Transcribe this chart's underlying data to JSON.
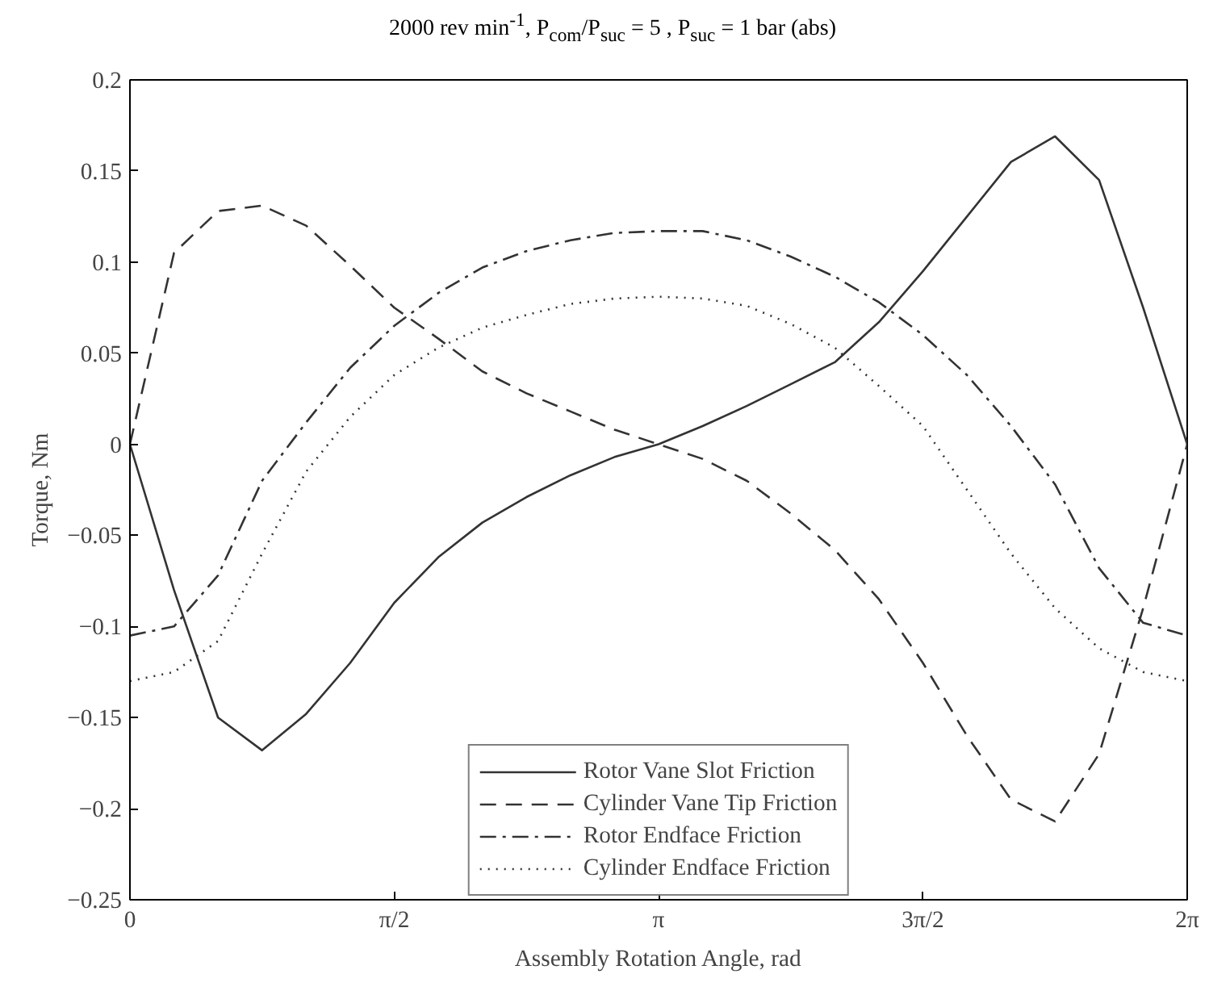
{
  "chart_data": {
    "type": "line",
    "title": "2000 rev min$^{-1}$, P$_{com}$/P$_{suc}$ = 5 , P$_{suc}$ = 1 bar (abs)",
    "xlabel": "Assembly Rotation Angle, rad",
    "ylabel": "Torque, Nm",
    "x": [
      0,
      0.2618,
      0.5236,
      0.7854,
      1.0472,
      1.309,
      1.5708,
      1.8326,
      2.0944,
      2.3562,
      2.618,
      2.8798,
      3.1416,
      3.4034,
      3.6652,
      3.927,
      4.1888,
      4.4506,
      4.7124,
      4.9742,
      5.236,
      5.4978,
      5.7596,
      6.0214,
      6.2832
    ],
    "series": [
      {
        "name": "Rotor Vane Slot Friction",
        "color": "#333333",
        "line_style": "solid",
        "values": [
          0,
          -0.08,
          -0.15,
          -0.168,
          -0.148,
          -0.12,
          -0.087,
          -0.062,
          -0.043,
          -0.029,
          -0.017,
          -0.007,
          0,
          0.01,
          0.021,
          0.033,
          0.045,
          0.067,
          0.095,
          0.125,
          0.155,
          0.169,
          0.145,
          0.075,
          0
        ]
      },
      {
        "name": "Cylinder Vane Tip Friction",
        "color": "#333333",
        "line_style": "dashed",
        "values": [
          0,
          0.105,
          0.128,
          0.131,
          0.12,
          0.098,
          0.075,
          0.058,
          0.04,
          0.028,
          0.018,
          0.008,
          0,
          -0.008,
          -0.02,
          -0.038,
          -0.058,
          -0.085,
          -0.12,
          -0.16,
          -0.195,
          -0.207,
          -0.17,
          -0.09,
          0
        ]
      },
      {
        "name": "Rotor Endface Friction",
        "color": "#333333",
        "line_style": "dashdot",
        "values": [
          -0.105,
          -0.1,
          -0.072,
          -0.02,
          0.012,
          0.042,
          0.065,
          0.083,
          0.097,
          0.106,
          0.112,
          0.116,
          0.117,
          0.117,
          0.112,
          0.103,
          0.092,
          0.078,
          0.06,
          0.038,
          0.01,
          -0.022,
          -0.068,
          -0.098,
          -0.105
        ]
      },
      {
        "name": "Cylinder Endface Friction",
        "color": "#333333",
        "line_style": "dotted",
        "values": [
          -0.13,
          -0.125,
          -0.108,
          -0.06,
          -0.015,
          0.015,
          0.038,
          0.053,
          0.064,
          0.071,
          0.077,
          0.08,
          0.081,
          0.08,
          0.076,
          0.066,
          0.053,
          0.032,
          0.01,
          -0.025,
          -0.06,
          -0.09,
          -0.112,
          -0.125,
          -0.13
        ]
      }
    ],
    "xlim": [
      0,
      6.2832
    ],
    "xticks": [
      0,
      {
        "value": 1.5708,
        "label": "π/2"
      },
      {
        "value": 3.1416,
        "label": "π"
      },
      {
        "value": 4.7124,
        "label": "3π/2"
      },
      {
        "value": 6.2832,
        "label": "2π"
      }
    ],
    "ylim": [
      -0.25,
      0.2
    ],
    "yticks": [
      -0.25,
      -0.2,
      -0.15,
      -0.1,
      -0.05,
      0,
      0.05,
      0.1,
      0.15,
      0.2
    ],
    "grid": false,
    "legend": "bottom"
  }
}
